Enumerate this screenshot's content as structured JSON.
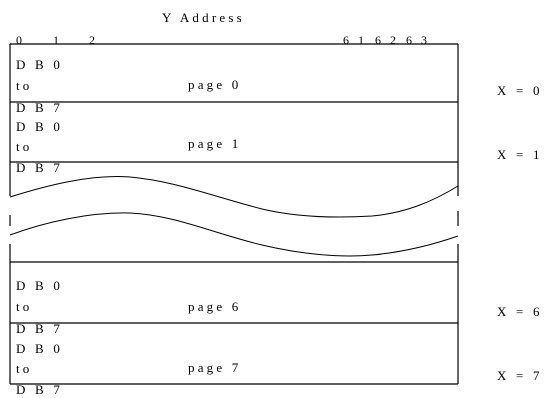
{
  "title": "Y Address",
  "y_ticks": [
    "0",
    "1",
    "2",
    "6 1",
    "6 2",
    "6 3"
  ],
  "byte_range": {
    "start": "D B 0",
    "middle": "to",
    "end": "D B 7"
  },
  "pages": [
    {
      "label": "page 0",
      "x_address": "X  =  0"
    },
    {
      "label": "page 1",
      "x_address": "X  =  1"
    },
    {
      "label": "page 6",
      "x_address": "X  =  6"
    },
    {
      "label": "page 7",
      "x_address": "X  =  7"
    }
  ]
}
